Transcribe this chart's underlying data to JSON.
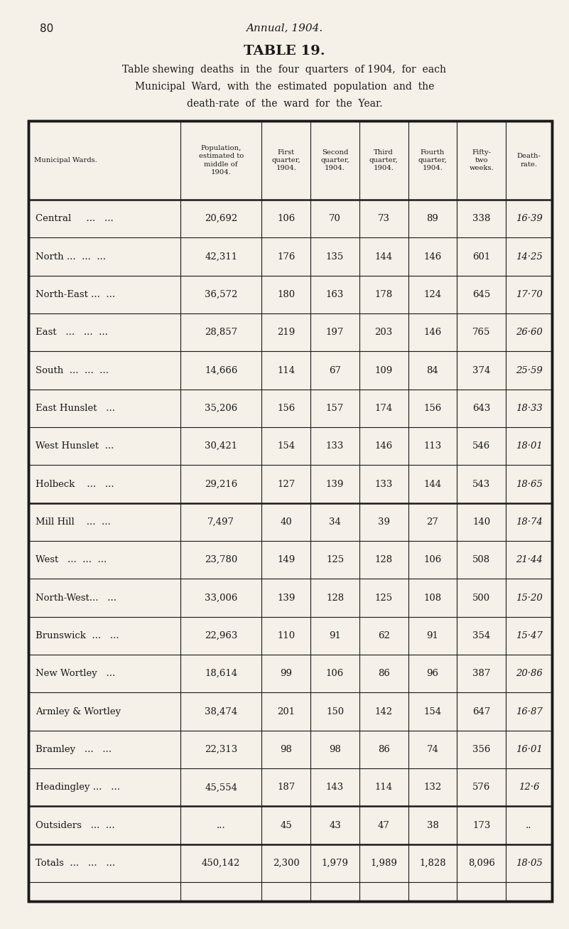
{
  "page_number": "80",
  "header_italic": "Annual, 1904.",
  "title": "TABLE 19.",
  "subtitle_lines": [
    "Table shewing  deaths  in  the  four  quarters  of 1904,  for  each",
    "Municipal  Ward,  with  the  estimated  population  and  the",
    "death-rate  of  the  ward  for  the  Year."
  ],
  "col_headers": [
    "Municipal Wards.",
    "Population,\nestimated to\nmiddle of\n1904.",
    "First\nquarter,\n1904.",
    "Second\nquarter,\n1904.",
    "Third\nquarter,\n1904.",
    "Fourth\nquarter,\n1904.",
    "Fifty-\ntwo\nweeks.",
    "Death-\nrate."
  ],
  "rows": [
    [
      "Central     ...   ...",
      "20,692",
      "106",
      "70",
      "73",
      "89",
      "338",
      "16·39"
    ],
    [
      "North ...  ...  ...",
      "42,311",
      "176",
      "135",
      "144",
      "146",
      "601",
      "14·25"
    ],
    [
      "North-East ...  ...",
      "36,572",
      "180",
      "163",
      "178",
      "124",
      "645",
      "17·70"
    ],
    [
      "East   ...   ...  ...",
      "28,857",
      "219",
      "197",
      "203",
      "146",
      "765",
      "26·60"
    ],
    [
      "South  ...  ...  ...",
      "14,666",
      "114",
      "67",
      "109",
      "84",
      "374",
      "25·59"
    ],
    [
      "East Hunslet   ...",
      "35,206",
      "156",
      "157",
      "174",
      "156",
      "643",
      "18·33"
    ],
    [
      "West Hunslet  ...",
      "30,421",
      "154",
      "133",
      "146",
      "113",
      "546",
      "18·01"
    ],
    [
      "Holbeck    ...   ...",
      "29,216",
      "127",
      "139",
      "133",
      "144",
      "543",
      "18·65"
    ],
    [
      "Mill Hill    ...  ...",
      "7,497",
      "40",
      "34",
      "39",
      "27",
      "140",
      "18·74"
    ],
    [
      "West   ...  ...  ...",
      "23,780",
      "149",
      "125",
      "128",
      "106",
      "508",
      "21·44"
    ],
    [
      "North-West...   ...",
      "33,006",
      "139",
      "128",
      "125",
      "108",
      "500",
      "15·20"
    ],
    [
      "Brunswick  ...   ...",
      "22,963",
      "110",
      "91",
      "62",
      "91",
      "354",
      "15·47"
    ],
    [
      "New Wortley   ...",
      "18,614",
      "99",
      "106",
      "86",
      "96",
      "387",
      "20·86"
    ],
    [
      "Armley & Wortley",
      "38,474",
      "201",
      "150",
      "142",
      "154",
      "647",
      "16·87"
    ],
    [
      "Bramley   ...   ...",
      "22,313",
      "98",
      "98",
      "86",
      "74",
      "356",
      "16·01"
    ],
    [
      "Headingley ...   ...",
      "45,554",
      "187",
      "143",
      "114",
      "132",
      "576",
      "12·6"
    ]
  ],
  "outsiders_row": [
    "Outsiders   ...  ...",
    "...",
    "45",
    "43",
    "47",
    "38",
    "173",
    ".."
  ],
  "totals_row": [
    "Totals  ...   ...   ...",
    "450,142",
    "2,300",
    "1,979",
    "1,989",
    "1,828",
    "8,096",
    "18·05"
  ],
  "separator_after_row": 7,
  "bg_color": "#f5f0e8",
  "text_color": "#1a1a1a",
  "header_text_color": "#1a1a1a"
}
